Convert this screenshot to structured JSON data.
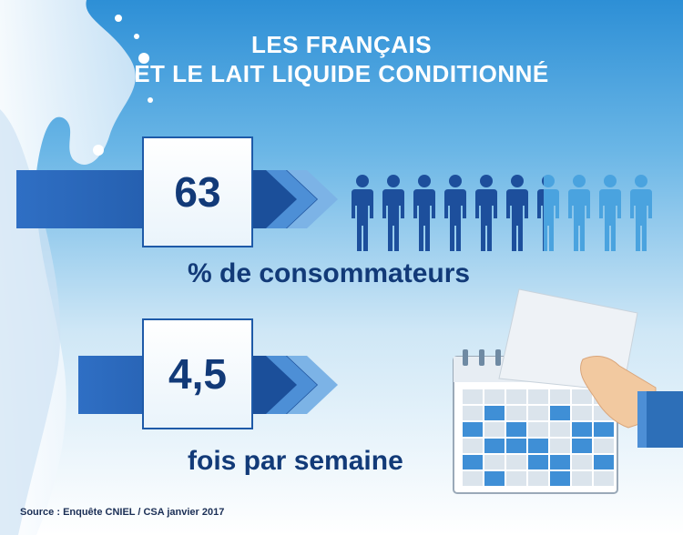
{
  "title": {
    "line1": "LES FRANÇAIS",
    "line2": "ET LE LAIT LIQUIDE CONDITIONNÉ"
  },
  "stats": [
    {
      "value": "63",
      "caption": "% de consommateurs"
    },
    {
      "value": "4,5",
      "caption": "fois par semaine"
    }
  ],
  "people": {
    "total": 10,
    "highlighted_fraction": 0.63
  },
  "source": "Source : Enquête CNIEL / CSA janvier 2017",
  "colors": {
    "dark_blue": "#123a78",
    "mid_blue": "#1e5aa8",
    "light_blue": "#4aa3df",
    "person_dark": "#1d4f9c",
    "person_light": "#4aa3df"
  },
  "icons": [
    "milk-splash-icon",
    "chevron-arrow-icon",
    "person-icon",
    "calendar-icon",
    "hand-icon"
  ]
}
